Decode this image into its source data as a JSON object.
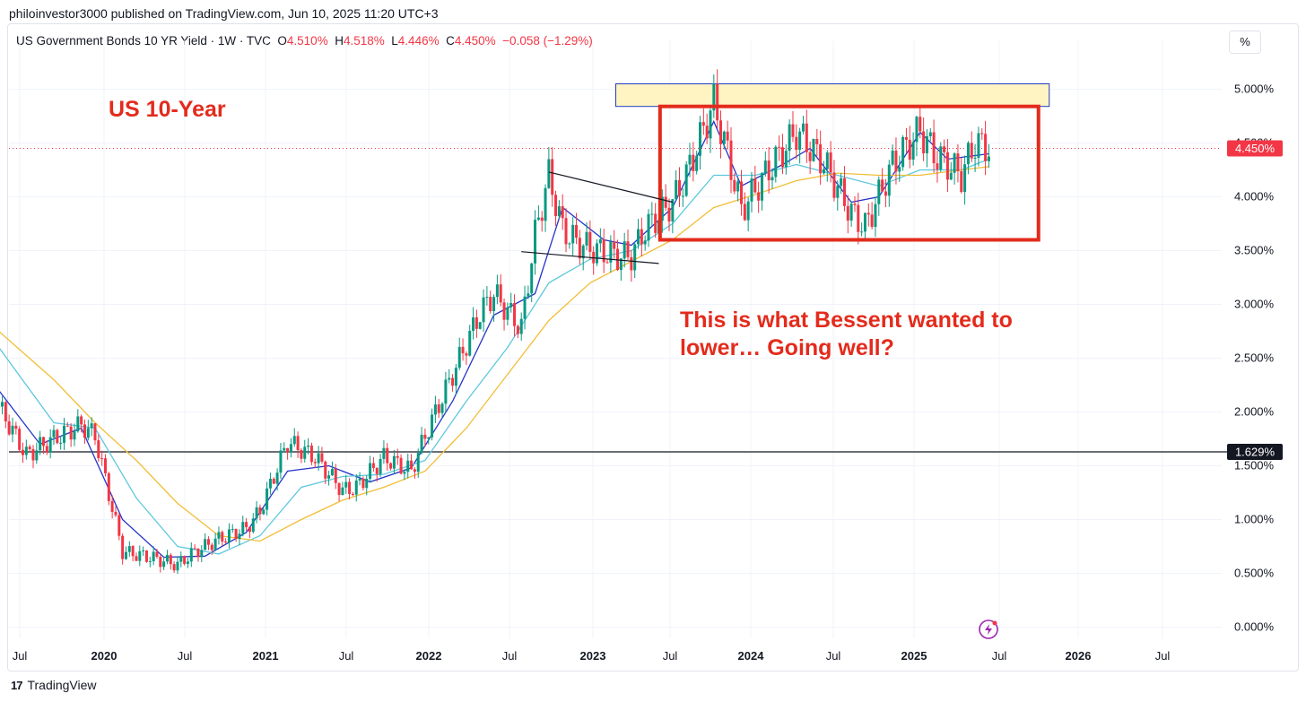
{
  "publisher": "philoinvestor3000 published on TradingView.com, Jun 10, 2025 11:20 UTC+3",
  "legend": {
    "symbol": "US Government Bonds 10 YR Yield · 1W · TVC",
    "open_label": "O",
    "open": "4.510%",
    "high_label": "H",
    "high": "4.518%",
    "low_label": "L",
    "low": "4.446%",
    "close_label": "C",
    "close": "4.450%",
    "change": "−0.058 (−1.29%)"
  },
  "scale_button": "%",
  "annotations": {
    "title": "US 10-Year",
    "comment_line1": "This is what Bessent wanted to",
    "comment_line2": "lower… Going well?"
  },
  "branding": {
    "mark": "17",
    "name": "TradingView"
  },
  "icons": {
    "replay": "lightning-icon",
    "logo": "tradingview-logo-icon"
  },
  "colors": {
    "up": "#089981",
    "down": "#f23645",
    "ma_short": "#2535c9",
    "ma_mid": "#5ec8de",
    "ma_long": "#f2be38",
    "annotation": "#e32b1c",
    "zone_fill": "#fff4c2",
    "zone_border": "#1e3dbf"
  },
  "chart_data": {
    "type": "line",
    "title": "US Government Bonds 10 YR Yield · 1W · TVC",
    "y_axis": {
      "ticks": [
        "5.000%",
        "4.500%",
        "4.000%",
        "3.500%",
        "3.000%",
        "2.500%",
        "2.000%",
        "1.500%",
        "1.000%",
        "0.500%",
        "0.000%"
      ],
      "ylim": [
        -0.1,
        5.4
      ]
    },
    "x_axis": {
      "ticks": [
        "Jul",
        "2020",
        "Jul",
        "2021",
        "Jul",
        "2022",
        "Jul",
        "2023",
        "Jul",
        "2024",
        "Jul",
        "2025",
        "Jul",
        "2026",
        "Jul"
      ],
      "bold_ticks": [
        "2020",
        "2021",
        "2022",
        "2023",
        "2024",
        "2025",
        "2026"
      ]
    },
    "price_labels": [
      {
        "value": 4.45,
        "text": "4.450%",
        "kind": "last"
      },
      {
        "value": 1.629,
        "text": "1.629%",
        "kind": "horizontal-line"
      }
    ],
    "series": [
      {
        "kind": "close",
        "points": [
          [
            "2019-06",
            2.05
          ],
          [
            "2019-08",
            1.6
          ],
          [
            "2019-10",
            1.75
          ],
          [
            "2019-12",
            1.88
          ],
          [
            "2020-01",
            1.78
          ],
          [
            "2020-03",
            0.7
          ],
          [
            "2020-05",
            0.65
          ],
          [
            "2020-07",
            0.58
          ],
          [
            "2020-08",
            0.68
          ],
          [
            "2020-10",
            0.82
          ],
          [
            "2020-12",
            0.92
          ],
          [
            "2021-01",
            1.08
          ],
          [
            "2021-03",
            1.72
          ],
          [
            "2021-05",
            1.58
          ],
          [
            "2021-07",
            1.27
          ],
          [
            "2021-08",
            1.3
          ],
          [
            "2021-10",
            1.58
          ],
          [
            "2021-12",
            1.45
          ],
          [
            "2022-01",
            1.78
          ],
          [
            "2022-03",
            2.35
          ],
          [
            "2022-05",
            2.92
          ],
          [
            "2022-06",
            3.1
          ],
          [
            "2022-08",
            2.78
          ],
          [
            "2022-09",
            3.65
          ],
          [
            "2022-10",
            4.2
          ],
          [
            "2022-11",
            3.7
          ],
          [
            "2022-12",
            3.58
          ],
          [
            "2023-01",
            3.52
          ],
          [
            "2023-03",
            3.45
          ],
          [
            "2023-04",
            3.45
          ],
          [
            "2023-05",
            3.7
          ],
          [
            "2023-07",
            3.95
          ],
          [
            "2023-08",
            4.2
          ],
          [
            "2023-10",
            4.88
          ],
          [
            "2023-11",
            4.4
          ],
          [
            "2023-12",
            3.88
          ],
          [
            "2024-02",
            4.25
          ],
          [
            "2024-04",
            4.6
          ],
          [
            "2024-06",
            4.32
          ],
          [
            "2024-08",
            3.85
          ],
          [
            "2024-09",
            3.72
          ],
          [
            "2024-11",
            4.3
          ],
          [
            "2025-01",
            4.62
          ],
          [
            "2025-02",
            4.4
          ],
          [
            "2025-04",
            4.2
          ],
          [
            "2025-05",
            4.5
          ],
          [
            "2025-06",
            4.45
          ]
        ]
      },
      {
        "kind": "ma-short",
        "points": [
          [
            "2019-06",
            2.2
          ],
          [
            "2019-09",
            1.7
          ],
          [
            "2019-12",
            1.85
          ],
          [
            "2020-03",
            1.0
          ],
          [
            "2020-06",
            0.65
          ],
          [
            "2020-09",
            0.66
          ],
          [
            "2020-12",
            0.88
          ],
          [
            "2021-03",
            1.45
          ],
          [
            "2021-06",
            1.5
          ],
          [
            "2021-09",
            1.35
          ],
          [
            "2021-12",
            1.48
          ],
          [
            "2022-03",
            2.1
          ],
          [
            "2022-06",
            2.9
          ],
          [
            "2022-09",
            3.1
          ],
          [
            "2022-11",
            3.9
          ],
          [
            "2023-02",
            3.6
          ],
          [
            "2023-04",
            3.55
          ],
          [
            "2023-07",
            3.9
          ],
          [
            "2023-10",
            4.7
          ],
          [
            "2023-12",
            4.1
          ],
          [
            "2024-03",
            4.3
          ],
          [
            "2024-05",
            4.45
          ],
          [
            "2024-08",
            3.95
          ],
          [
            "2024-10",
            4.0
          ],
          [
            "2025-01",
            4.6
          ],
          [
            "2025-03",
            4.35
          ],
          [
            "2025-06",
            4.4
          ]
        ]
      },
      {
        "kind": "ma-mid",
        "points": [
          [
            "2019-06",
            2.6
          ],
          [
            "2019-10",
            1.9
          ],
          [
            "2020-01",
            1.85
          ],
          [
            "2020-04",
            1.2
          ],
          [
            "2020-07",
            0.75
          ],
          [
            "2020-10",
            0.68
          ],
          [
            "2021-01",
            0.85
          ],
          [
            "2021-04",
            1.3
          ],
          [
            "2021-07",
            1.4
          ],
          [
            "2021-10",
            1.42
          ],
          [
            "2022-01",
            1.55
          ],
          [
            "2022-04",
            2.1
          ],
          [
            "2022-07",
            2.6
          ],
          [
            "2022-10",
            3.2
          ],
          [
            "2023-01",
            3.42
          ],
          [
            "2023-04",
            3.5
          ],
          [
            "2023-07",
            3.75
          ],
          [
            "2023-10",
            4.2
          ],
          [
            "2024-01",
            4.2
          ],
          [
            "2024-04",
            4.3
          ],
          [
            "2024-07",
            4.2
          ],
          [
            "2024-10",
            4.1
          ],
          [
            "2025-01",
            4.25
          ],
          [
            "2025-04",
            4.25
          ],
          [
            "2025-06",
            4.35
          ]
        ]
      },
      {
        "kind": "ma-long",
        "points": [
          [
            "2019-06",
            2.75
          ],
          [
            "2019-10",
            2.3
          ],
          [
            "2020-01",
            1.9
          ],
          [
            "2020-04",
            1.55
          ],
          [
            "2020-07",
            1.15
          ],
          [
            "2020-10",
            0.85
          ],
          [
            "2021-01",
            0.8
          ],
          [
            "2021-04",
            1.0
          ],
          [
            "2021-07",
            1.18
          ],
          [
            "2021-10",
            1.3
          ],
          [
            "2022-01",
            1.45
          ],
          [
            "2022-04",
            1.85
          ],
          [
            "2022-07",
            2.35
          ],
          [
            "2022-10",
            2.85
          ],
          [
            "2023-01",
            3.2
          ],
          [
            "2023-04",
            3.4
          ],
          [
            "2023-07",
            3.6
          ],
          [
            "2023-10",
            3.9
          ],
          [
            "2024-01",
            4.02
          ],
          [
            "2024-04",
            4.15
          ],
          [
            "2024-07",
            4.22
          ],
          [
            "2024-10",
            4.2
          ],
          [
            "2025-01",
            4.2
          ],
          [
            "2025-04",
            4.25
          ],
          [
            "2025-06",
            4.28
          ]
        ]
      }
    ],
    "shapes": {
      "resistance_zone": {
        "from": "2023-03",
        "to": "2025-10",
        "low": 4.84,
        "high": 5.05
      },
      "range_box": {
        "from": "2023-07",
        "to": "2025-10",
        "low": 3.6,
        "high": 4.84
      },
      "triangle_upper": {
        "from": [
          "2022-10",
          4.23
        ],
        "to": [
          "2023-07",
          3.95
        ]
      },
      "triangle_lower": {
        "from": [
          "2022-08",
          3.49
        ],
        "to": [
          "2023-06",
          3.38
        ]
      }
    }
  }
}
